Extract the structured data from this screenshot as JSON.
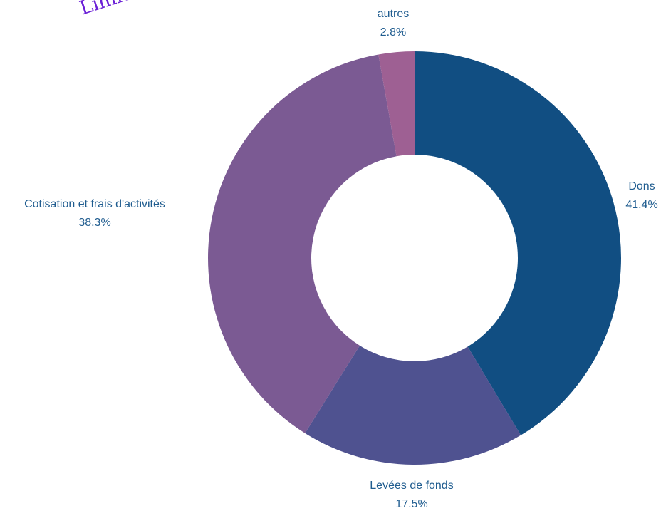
{
  "watermark": "Limite",
  "chart_data": {
    "type": "pie",
    "donut": true,
    "start_angle_deg": 0,
    "direction": "clockwise",
    "slices": [
      {
        "label": "Dons",
        "value": 41.4,
        "percent_label": "41.4%",
        "color": "#114e82"
      },
      {
        "label": "Levées de fonds",
        "value": 17.5,
        "percent_label": "17.5%",
        "color": "#4f5290"
      },
      {
        "label": "Cotisation et frais d'activités",
        "value": 38.3,
        "percent_label": "38.3%",
        "color": "#7b5a93"
      },
      {
        "label": "autres",
        "value": 2.8,
        "percent_label": "2.8%",
        "color": "#9e6093"
      }
    ],
    "label_color": "#1f5c8f"
  }
}
